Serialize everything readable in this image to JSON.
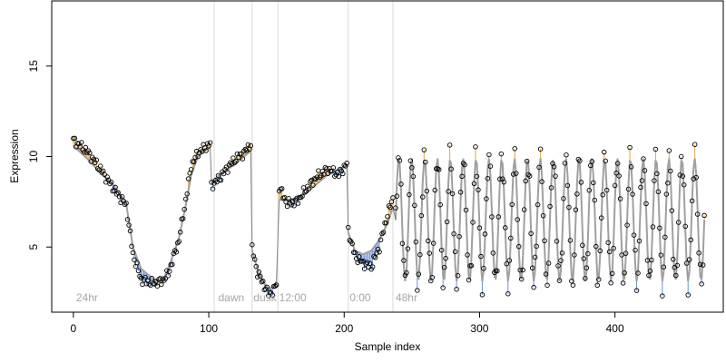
{
  "chart_data": {
    "type": "line",
    "title": "",
    "xlabel": "Sample index",
    "ylabel": "Expression",
    "xlim": [
      -16,
      480
    ],
    "ylim": [
      1.4,
      18.6
    ],
    "x_ticks": [
      0,
      100,
      200,
      300,
      400
    ],
    "y_ticks": [
      5,
      10,
      15
    ],
    "grid": false,
    "colors": {
      "fitted_line": "#a0a0a0",
      "residual_above": "#e6a640",
      "residual_below": "#6a93d8",
      "points_stroke": "#000000",
      "vlines": "#d8d8d8",
      "annotation": "#a6a6a6",
      "frame": "#000000"
    },
    "vertical_markers": [
      {
        "x": 104,
        "label": ""
      },
      {
        "x": 132,
        "label": ""
      },
      {
        "x": 151,
        "label": ""
      },
      {
        "x": 203,
        "label": ""
      },
      {
        "x": 236,
        "label": ""
      }
    ],
    "annotations": [
      {
        "x": 2,
        "y": 2.0,
        "text": "24hr"
      },
      {
        "x": 107,
        "y": 2.0,
        "text": "dawn"
      },
      {
        "x": 133,
        "y": 2.0,
        "text": "dusk"
      },
      {
        "x": 152,
        "y": 2.0,
        "text": "12:00"
      },
      {
        "x": 204,
        "y": 2.0,
        "text": "0:00"
      },
      {
        "x": 238,
        "y": 2.0,
        "text": "48hr"
      }
    ],
    "segments": [
      {
        "x": [
          0,
          10,
          20,
          30,
          39,
          44,
          50,
          58,
          65,
          70,
          78,
          83,
          87,
          92,
          97,
          101
        ],
        "fit": [
          10.6,
          9.9,
          9.1,
          8.4,
          7.4,
          5.0,
          3.8,
          3.3,
          3.0,
          3.8,
          5.5,
          7.3,
          9.0,
          10.0,
          10.3,
          10.5
        ],
        "obs": [
          10.9,
          10.3,
          9.3,
          8.2,
          7.3,
          4.6,
          3.2,
          3.0,
          3.1,
          3.5,
          5.4,
          7.6,
          9.5,
          10.2,
          10.5,
          10.7
        ]
      },
      {
        "x": [
          102,
          108,
          114,
          120,
          126,
          131
        ],
        "fit": [
          8.6,
          9.0,
          9.3,
          9.6,
          10.0,
          10.3
        ],
        "obs": [
          8.4,
          8.8,
          9.4,
          9.9,
          10.2,
          10.7
        ]
      },
      {
        "x": [
          132,
          136,
          140,
          144,
          148,
          150
        ],
        "fit": [
          4.8,
          3.8,
          3.1,
          2.7,
          2.8,
          3.1
        ],
        "obs": [
          4.9,
          3.6,
          3.0,
          2.4,
          2.6,
          3.0
        ]
      },
      {
        "x": [
          152,
          158,
          165,
          172,
          180,
          188,
          196,
          202
        ],
        "fit": [
          7.6,
          7.6,
          7.7,
          8.0,
          8.5,
          9.0,
          9.3,
          9.5
        ],
        "obs": [
          8.3,
          7.4,
          7.5,
          8.2,
          8.9,
          9.3,
          9.0,
          9.6
        ]
      },
      {
        "x": [
          203,
          208,
          214,
          220,
          226,
          232,
          236
        ],
        "fit": [
          5.8,
          4.8,
          4.6,
          4.8,
          5.4,
          6.3,
          7.2
        ],
        "obs": [
          5.9,
          4.5,
          4.1,
          3.9,
          5.0,
          6.8,
          7.7
        ]
      }
    ],
    "oscillation": {
      "x_start": 238,
      "x_end": 466,
      "period": 9.5,
      "center": 6.5,
      "amplitude": 3.4
    },
    "point_count": 467
  }
}
